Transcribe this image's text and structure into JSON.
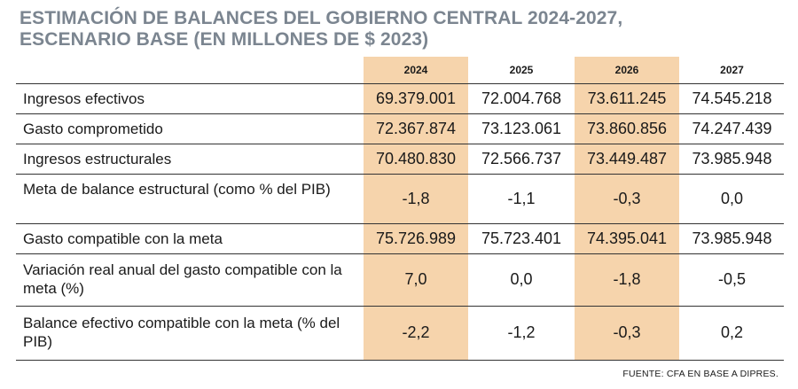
{
  "title": {
    "line1": "ESTIMACIÓN DE BALANCES DEL GOBIERNO CENTRAL 2024-2027,",
    "line2": "ESCENARIO BASE (EN MILLONES DE $ 2023)"
  },
  "columns": [
    "2024",
    "2025",
    "2026",
    "2027"
  ],
  "highlight_color": "#f6d4ac",
  "rows": [
    {
      "label": "Ingresos efectivos",
      "values": [
        "69.379.001",
        "72.004.768",
        "73.611.245",
        "74.545.218"
      ]
    },
    {
      "label": "Gasto comprometido",
      "values": [
        "72.367.874",
        "73.123.061",
        "73.860.856",
        "74.247.439"
      ]
    },
    {
      "label": "Ingresos estructurales",
      "values": [
        "70.480.830",
        "72.566.737",
        "73.449.487",
        "73.985.948"
      ]
    },
    {
      "label": "Meta de balance estructural (como % del PIB)",
      "values": [
        "-1,8",
        "-1,1",
        "-0,3",
        "0,0"
      ]
    },
    {
      "label": "Gasto compatible con la meta",
      "values": [
        "75.726.989",
        "75.723.401",
        "74.395.041",
        "73.985.948"
      ]
    },
    {
      "label": "Variación real anual del gasto compatible con la meta (%)",
      "values": [
        "7,0",
        "0,0",
        "-1,8",
        "-0,5"
      ]
    },
    {
      "label": "Balance efectivo compatible con la meta (% del PIB)",
      "values": [
        "-2,2",
        "-1,2",
        "-0,3",
        "0,2"
      ]
    }
  ],
  "source": "FUENTE: CFA EN BASE A DIPRES."
}
